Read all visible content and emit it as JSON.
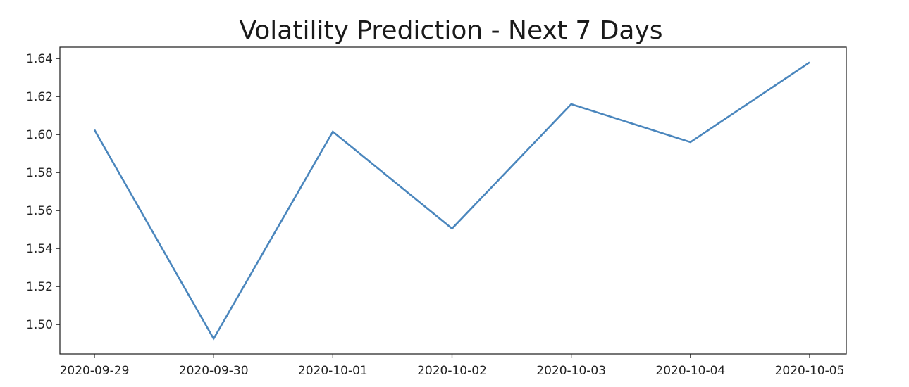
{
  "chart_data": {
    "type": "line",
    "title": "Volatility Prediction - Next 7 Days",
    "xlabel": "",
    "ylabel": "",
    "x": [
      "2020-09-29",
      "2020-09-30",
      "2020-10-01",
      "2020-10-02",
      "2020-10-03",
      "2020-10-04",
      "2020-10-05"
    ],
    "series": [
      {
        "values": [
          1.6025,
          1.4925,
          1.6015,
          1.5505,
          1.616,
          1.596,
          1.638
        ],
        "color": "#4a86bd"
      }
    ],
    "yticks": [
      "1.50",
      "1.52",
      "1.54",
      "1.56",
      "1.58",
      "1.60",
      "1.62",
      "1.64"
    ],
    "ylim": [
      1.4845,
      1.646
    ],
    "grid": false,
    "legend": "none"
  }
}
